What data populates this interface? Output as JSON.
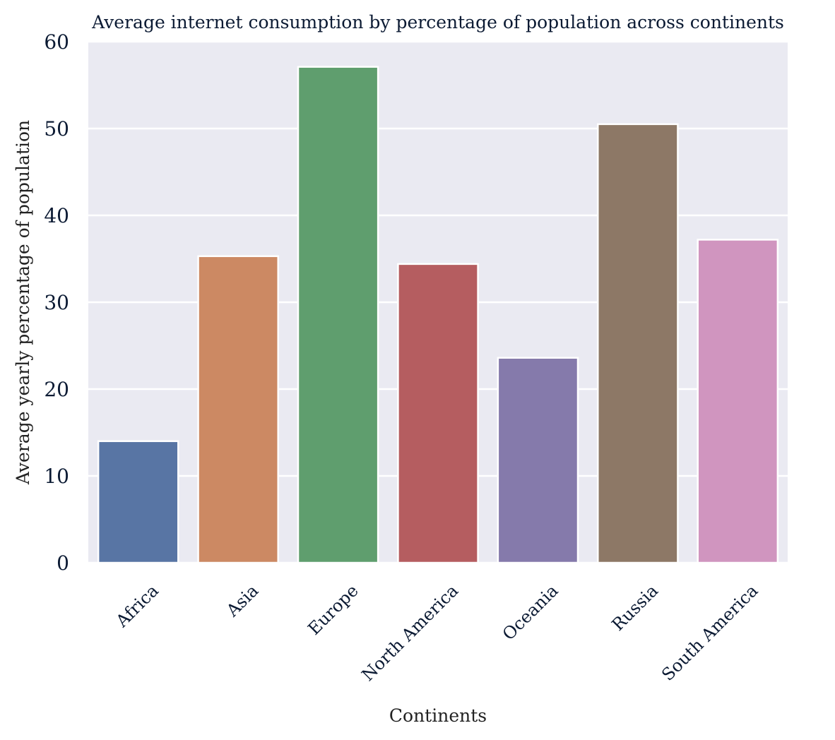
{
  "chart_data": {
    "type": "bar",
    "title": "Average internet consumption by percentage of population across continents",
    "xlabel": "Continents",
    "ylabel": "Average yearly percentage of population",
    "categories": [
      "Africa",
      "Asia",
      "Europe",
      "North America",
      "Oceania",
      "Russia",
      "South America"
    ],
    "values": [
      14.0,
      35.3,
      57.1,
      34.4,
      23.6,
      50.5,
      37.2
    ],
    "colors": [
      "#5875a4",
      "#cc8963",
      "#5f9e6e",
      "#b55d60",
      "#857aab",
      "#8d7866",
      "#d095bf"
    ],
    "ylim": [
      0,
      60
    ],
    "yticks": [
      0,
      10,
      20,
      30,
      40,
      50,
      60
    ],
    "grid": true,
    "background": "#eaeaf2"
  }
}
